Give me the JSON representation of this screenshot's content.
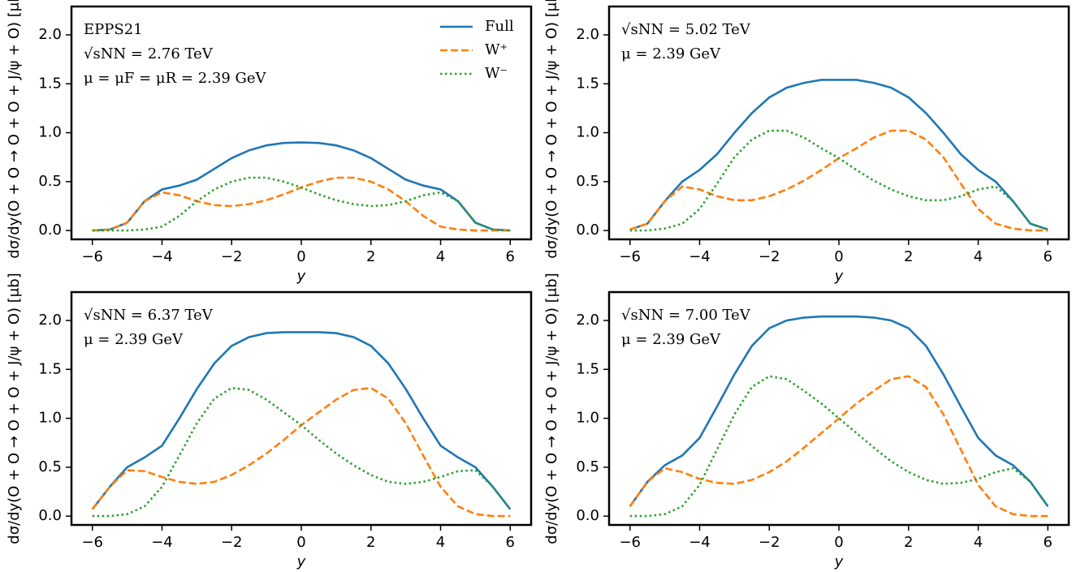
{
  "chart_data": [
    {
      "type": "line",
      "annotations": [
        "EPPS21",
        "√sNN = 2.76 TeV",
        "μ = μF = μR = 2.39 GeV"
      ],
      "xlabel": "y",
      "ylabel": "dσ/dy(O + O → O + O + J/ψ + O) [μb]",
      "legend": "upper right",
      "x": [
        -6,
        -5.5,
        -5,
        -4.5,
        -4,
        -3.5,
        -3,
        -2.5,
        -2,
        -1.5,
        -1,
        -0.5,
        0,
        0.5,
        1,
        1.5,
        2,
        2.5,
        3,
        3.5,
        4,
        4.5,
        5,
        5.5,
        6
      ],
      "xlim": [
        -6.6,
        6.6
      ],
      "ylim": [
        -0.09,
        2.29
      ],
      "xticks": [
        {
          "value": -6,
          "label": "−6"
        },
        {
          "value": -4,
          "label": "−4"
        },
        {
          "value": -2,
          "label": "−2"
        },
        0,
        2,
        4,
        6
      ],
      "yticks": [
        {
          "value": 0,
          "label": "0.0"
        },
        0.5,
        {
          "value": 1,
          "label": "1.0"
        },
        1.5,
        {
          "value": 2,
          "label": "2.0"
        }
      ],
      "series": [
        {
          "name": "Full",
          "color": "#1f77b4",
          "linestyle": "solid",
          "values": [
            0,
            0.01,
            0.08,
            0.3,
            0.42,
            0.46,
            0.52,
            0.63,
            0.74,
            0.82,
            0.87,
            0.895,
            0.9,
            0.895,
            0.87,
            0.82,
            0.74,
            0.63,
            0.52,
            0.46,
            0.42,
            0.3,
            0.08,
            0.01,
            0
          ]
        },
        {
          "name": "W⁺",
          "color": "#ff7f0e",
          "linestyle": "dashed",
          "values": [
            0,
            0.01,
            0.08,
            0.3,
            0.39,
            0.36,
            0.3,
            0.26,
            0.25,
            0.27,
            0.31,
            0.37,
            0.44,
            0.5,
            0.54,
            0.54,
            0.5,
            0.42,
            0.3,
            0.15,
            0.04,
            0.01,
            0,
            0,
            0
          ]
        },
        {
          "name": "W⁻",
          "color": "#2ca02c",
          "linestyle": "dotted",
          "values": [
            0,
            0,
            0,
            0.01,
            0.04,
            0.15,
            0.3,
            0.42,
            0.5,
            0.54,
            0.54,
            0.5,
            0.44,
            0.37,
            0.31,
            0.27,
            0.25,
            0.26,
            0.3,
            0.36,
            0.39,
            0.3,
            0.08,
            0.01,
            0
          ]
        }
      ]
    },
    {
      "type": "line",
      "annotations": [
        "√sNN = 5.02 TeV",
        "μ = 2.39 GeV"
      ],
      "xlabel": "y",
      "ylabel": "dσ/dy(O + O → O + O + J/ψ + O) [μb]",
      "x": [
        -6,
        -5.5,
        -5,
        -4.5,
        -4,
        -3.5,
        -3,
        -2.5,
        -2,
        -1.5,
        -1,
        -0.5,
        0,
        0.5,
        1,
        1.5,
        2,
        2.5,
        3,
        3.5,
        4,
        4.5,
        5,
        5.5,
        6
      ],
      "xlim": [
        -6.6,
        6.6
      ],
      "ylim": [
        -0.09,
        2.29
      ],
      "xticks": [
        {
          "value": -6,
          "label": "−6"
        },
        {
          "value": -4,
          "label": "−4"
        },
        {
          "value": -2,
          "label": "−2"
        },
        0,
        2,
        4,
        6
      ],
      "yticks": [
        {
          "value": 0,
          "label": "0.0"
        },
        0.5,
        {
          "value": 1,
          "label": "1.0"
        },
        1.5,
        {
          "value": 2,
          "label": "2.0"
        }
      ],
      "series": [
        {
          "color": "#1f77b4",
          "linestyle": "solid",
          "values": [
            0.01,
            0.07,
            0.3,
            0.5,
            0.62,
            0.78,
            1.0,
            1.2,
            1.36,
            1.46,
            1.51,
            1.54,
            1.54,
            1.54,
            1.51,
            1.46,
            1.36,
            1.2,
            1.0,
            0.78,
            0.62,
            0.5,
            0.3,
            0.07,
            0.01
          ]
        },
        {
          "color": "#ff7f0e",
          "linestyle": "dashed",
          "values": [
            0.01,
            0.07,
            0.3,
            0.45,
            0.42,
            0.35,
            0.31,
            0.31,
            0.35,
            0.42,
            0.51,
            0.62,
            0.74,
            0.84,
            0.95,
            1.02,
            1.02,
            0.93,
            0.75,
            0.48,
            0.22,
            0.07,
            0.02,
            0,
            0
          ]
        },
        {
          "color": "#2ca02c",
          "linestyle": "dotted",
          "values": [
            0,
            0,
            0.02,
            0.07,
            0.22,
            0.48,
            0.75,
            0.93,
            1.02,
            1.02,
            0.95,
            0.84,
            0.74,
            0.62,
            0.51,
            0.42,
            0.35,
            0.31,
            0.31,
            0.35,
            0.42,
            0.45,
            0.3,
            0.07,
            0.01
          ]
        }
      ]
    },
    {
      "type": "line",
      "annotations": [
        "√sNN = 6.37 TeV",
        "μ = 2.39 GeV"
      ],
      "xlabel": "y",
      "ylabel": "dσ/dy(O + O → O + O + J/ψ + O) [μb]",
      "x": [
        -6,
        -5.5,
        -5,
        -4.5,
        -4,
        -3.5,
        -3,
        -2.5,
        -2,
        -1.5,
        -1,
        -0.5,
        0,
        0.5,
        1,
        1.5,
        2,
        2.5,
        3,
        3.5,
        4,
        4.5,
        5,
        5.5,
        6
      ],
      "xlim": [
        -6.6,
        6.6
      ],
      "ylim": [
        -0.09,
        2.29
      ],
      "xticks": [
        {
          "value": -6,
          "label": "−6"
        },
        {
          "value": -4,
          "label": "−4"
        },
        {
          "value": -2,
          "label": "−2"
        },
        0,
        2,
        4,
        6
      ],
      "yticks": [
        {
          "value": 0,
          "label": "0.0"
        },
        0.5,
        {
          "value": 1,
          "label": "1.0"
        },
        1.5,
        {
          "value": 2,
          "label": "2.0"
        }
      ],
      "series": [
        {
          "color": "#1f77b4",
          "linestyle": "solid",
          "values": [
            0.07,
            0.3,
            0.5,
            0.6,
            0.72,
            1.0,
            1.3,
            1.56,
            1.74,
            1.83,
            1.87,
            1.88,
            1.88,
            1.88,
            1.87,
            1.83,
            1.74,
            1.56,
            1.3,
            1.0,
            0.72,
            0.6,
            0.5,
            0.3,
            0.07
          ]
        },
        {
          "color": "#ff7f0e",
          "linestyle": "dashed",
          "values": [
            0.07,
            0.3,
            0.47,
            0.46,
            0.4,
            0.35,
            0.33,
            0.35,
            0.42,
            0.52,
            0.64,
            0.78,
            0.93,
            1.06,
            1.19,
            1.29,
            1.31,
            1.2,
            0.95,
            0.62,
            0.3,
            0.1,
            0.02,
            0,
            0
          ]
        },
        {
          "color": "#2ca02c",
          "linestyle": "dotted",
          "values": [
            0,
            0,
            0.02,
            0.1,
            0.3,
            0.62,
            0.95,
            1.2,
            1.31,
            1.29,
            1.19,
            1.06,
            0.93,
            0.78,
            0.64,
            0.52,
            0.42,
            0.35,
            0.33,
            0.35,
            0.4,
            0.46,
            0.47,
            0.3,
            0.07
          ]
        }
      ]
    },
    {
      "type": "line",
      "annotations": [
        "√sNN = 7.00 TeV",
        "μ = 2.39 GeV"
      ],
      "xlabel": "y",
      "ylabel": "dσ/dy(O + O → O + O + J/ψ + O) [μb]",
      "x": [
        -6,
        -5.5,
        -5,
        -4.5,
        -4,
        -3.5,
        -3,
        -2.5,
        -2,
        -1.5,
        -1,
        -0.5,
        0,
        0.5,
        1,
        1.5,
        2,
        2.5,
        3,
        3.5,
        4,
        4.5,
        5,
        5.5,
        6
      ],
      "xlim": [
        -6.6,
        6.6
      ],
      "ylim": [
        -0.09,
        2.29
      ],
      "xticks": [
        {
          "value": -6,
          "label": "−6"
        },
        {
          "value": -4,
          "label": "−4"
        },
        {
          "value": -2,
          "label": "−2"
        },
        0,
        2,
        4,
        6
      ],
      "yticks": [
        {
          "value": 0,
          "label": "0.0"
        },
        0.5,
        {
          "value": 1,
          "label": "1.0"
        },
        1.5,
        {
          "value": 2,
          "label": "2.0"
        }
      ],
      "series": [
        {
          "color": "#1f77b4",
          "linestyle": "solid",
          "values": [
            0.1,
            0.35,
            0.52,
            0.62,
            0.8,
            1.12,
            1.45,
            1.74,
            1.92,
            2.0,
            2.03,
            2.04,
            2.04,
            2.04,
            2.03,
            2.0,
            1.92,
            1.74,
            1.45,
            1.12,
            0.8,
            0.62,
            0.52,
            0.35,
            0.1
          ]
        },
        {
          "color": "#ff7f0e",
          "linestyle": "dashed",
          "values": [
            0.1,
            0.35,
            0.49,
            0.45,
            0.38,
            0.34,
            0.33,
            0.37,
            0.45,
            0.56,
            0.7,
            0.85,
            1.0,
            1.15,
            1.28,
            1.4,
            1.43,
            1.32,
            1.04,
            0.68,
            0.32,
            0.1,
            0.02,
            0,
            0
          ]
        },
        {
          "color": "#2ca02c",
          "linestyle": "dotted",
          "values": [
            0,
            0,
            0.02,
            0.1,
            0.32,
            0.68,
            1.04,
            1.32,
            1.43,
            1.4,
            1.28,
            1.15,
            1.0,
            0.85,
            0.7,
            0.56,
            0.45,
            0.37,
            0.33,
            0.34,
            0.38,
            0.45,
            0.49,
            0.35,
            0.1
          ]
        }
      ]
    }
  ]
}
